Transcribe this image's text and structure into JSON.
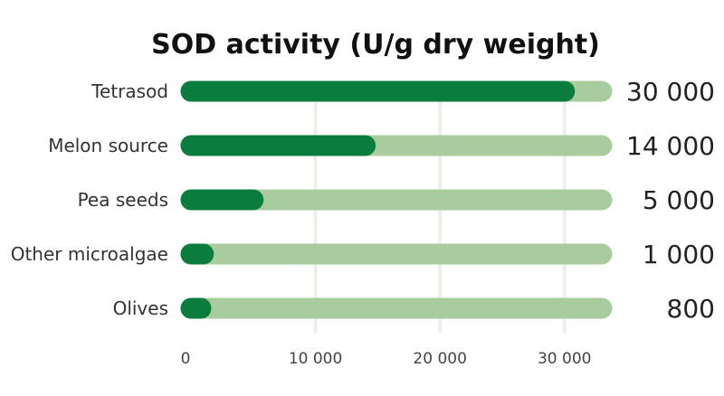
{
  "chart_data": {
    "type": "bar",
    "orientation": "horizontal",
    "title": "SOD activity (U/g dry weight)",
    "categories": [
      "Tetrasod",
      "Melon source",
      "Pea seeds",
      "Other microalgae",
      "Olives"
    ],
    "values": [
      30000,
      14000,
      5000,
      1000,
      800
    ],
    "value_labels": [
      "30 000",
      "14 000",
      "5 000",
      "1 000",
      "800"
    ],
    "xlim": [
      0,
      33000
    ],
    "xticks": [
      0,
      10000,
      20000,
      30000
    ],
    "xtick_labels": [
      "0",
      "10 000",
      "20 000",
      "30 000"
    ],
    "xlabel": "",
    "ylabel": "",
    "grid": true,
    "colors": {
      "bar": "#0a7d3e",
      "track": "#a8cc9d",
      "grid": "#efefe9"
    }
  }
}
